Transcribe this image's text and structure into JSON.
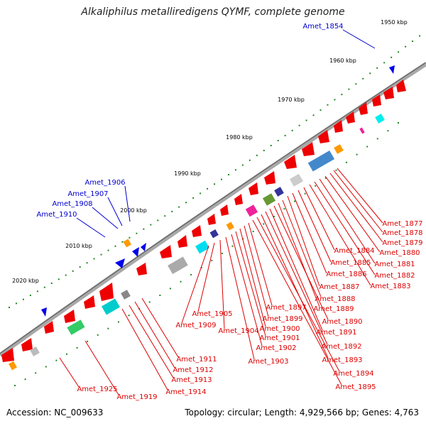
{
  "title": "Alkaliphilus metalliredigens QYMF, complete genome",
  "footer": {
    "accession": "Accession: NC_009633",
    "topology": "Topology: circular; Length: 4,929,566 bp; Genes: 4,763"
  },
  "ticks": [
    {
      "label": "1950 kbp",
      "kbp": 1950
    },
    {
      "label": "1960 kbp",
      "kbp": 1960
    },
    {
      "label": "1970 kbp",
      "kbp": 1970
    },
    {
      "label": "1980 kbp",
      "kbp": 1980
    },
    {
      "label": "1990 kbp",
      "kbp": 1990
    },
    {
      "label": "2000 kbp",
      "kbp": 2000
    },
    {
      "label": "2010 kbp",
      "kbp": 2010
    },
    {
      "label": "2020 kbp",
      "kbp": 2020
    }
  ],
  "colors": {
    "forward_gene": "#ee0000",
    "reverse_gene": "#0000ee",
    "backbone": "#888888",
    "tick": "#228822",
    "label_red": "#dd0000",
    "label_blue": "#0000cc"
  },
  "blue_labels": [
    "Amet_1854",
    "Amet_1906",
    "Amet_1907",
    "Amet_1908",
    "Amet_1910"
  ],
  "red_labels_right": [
    "Amet_1877",
    "Amet_1878",
    "Amet_1879",
    "Amet_1880",
    "Amet_1881",
    "Amet_1882",
    "Amet_1883",
    "Amet_1884",
    "Amet_1885",
    "Amet_1886",
    "Amet_1887"
  ],
  "red_labels_middle": [
    "Amet_1888",
    "Amet_1889",
    "Amet_1890",
    "Amet_1891",
    "Amet_1892",
    "Amet_1893",
    "Amet_1894",
    "Amet_1895",
    "Amet_1897",
    "Amet_1899",
    "Amet_1900",
    "Amet_1901",
    "Amet_1902",
    "Amet_1903",
    "Amet_1904",
    "Amet_1905",
    "Amet_1909"
  ],
  "red_labels_bottom": [
    "Amet_1911",
    "Amet_1912",
    "Amet_1913",
    "Amet_1914",
    "Amet_1919",
    "Amet_1925"
  ]
}
